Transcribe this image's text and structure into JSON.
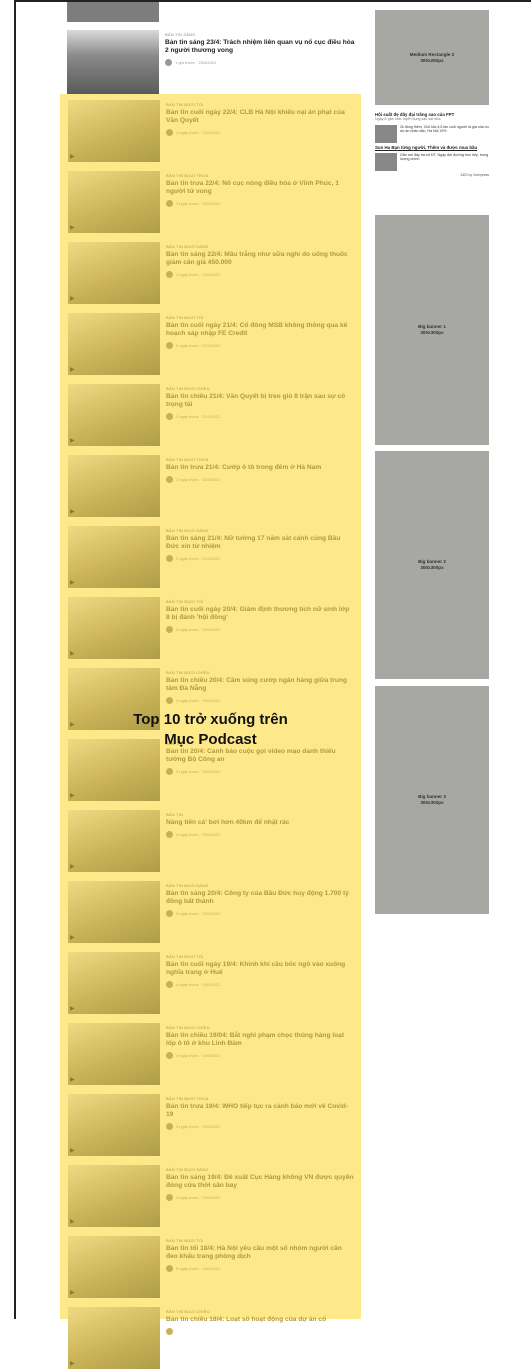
{
  "top_items": [
    {
      "category": "",
      "title": "",
      "date": ""
    },
    {
      "category": "BẢN TIN SÁNG",
      "title": "Bản tin sáng 23/4: Trách nhiệm liên quan vụ nổ cục điều hòa 2 người thương vong",
      "date": "1 giờ trước · 23/4/2021"
    }
  ],
  "list_items": [
    {
      "category": "BẢN TIN BUỔI TỐI",
      "title": "Bản tin cuối ngày 22/4: CLB Hà Nội khiếu nại án phạt của Văn Quyết",
      "date": "1 ngày trước · 22/4/2021"
    },
    {
      "category": "BẢN TIN BUỔI TRƯA",
      "title": "Bản tin trưa 22/4: Nổ cục nóng điều hòa ở Vĩnh Phúc, 1 người tử vong",
      "date": "1 ngày trước · 22/4/2021"
    },
    {
      "category": "BẢN TIN BUỔI SÁNG",
      "title": "Bản tin sáng 22/4: Mâu trắng như sữa nghi do uống thuốc giảm cân giá 450.000",
      "date": "1 ngày trước · 22/4/2021"
    },
    {
      "category": "BẢN TIN BUỔI TỐI",
      "title": "Bản tin cuối ngày 21/4: Cổ đông MSB không thông qua kế hoạch sáp nhập FE Credit",
      "date": "2 ngày trước · 21/4/2021"
    },
    {
      "category": "BẢN TIN BUỔI CHIỀU",
      "title": "Bản tin chiều 21/4: Văn Quyết bị treo giò 8 trận sau sự cố trọng tài",
      "date": "2 ngày trước · 21/4/2021"
    },
    {
      "category": "BẢN TIN BUỔI TRƯA",
      "title": "Bản tin trưa 21/4: Cướp ô tô trong đêm ở Hà Nam",
      "date": "2 ngày trước · 21/4/2021"
    },
    {
      "category": "BẢN TIN BUỔI SÁNG",
      "title": "Bản tin sáng 21/4: Nữ tướng 17 năm sát cánh cùng Bầu Đức xin từ nhiệm",
      "date": "2 ngày trước · 21/4/2021"
    },
    {
      "category": "BẢN TIN BUỔI TỐI",
      "title": "Bản tin cuối ngày 20/4: Giám định thương tích nữ sinh lớp 8 bị đánh 'hội đồng'",
      "date": "3 ngày trước · 20/4/2021"
    },
    {
      "category": "BẢN TIN BUỔI CHIỀU",
      "title": "Bản tin chiều 20/4: Cầm súng cướp ngân hàng giữa trung tâm Đà Nẵng",
      "date": "3 ngày trước · 20/4/2021"
    },
    {
      "category": "BẢN TIN",
      "title": "Bản tin 20/4: Cảnh báo cuộc gọi video mạo danh thiếu tướng Bộ Công an",
      "date": "3 ngày trước · 20/4/2021"
    },
    {
      "category": "BẢN TIN",
      "title": "Nàng tiên cá' bơi hơn 40km để nhặt rác",
      "date": "3 ngày trước · 20/4/2021"
    },
    {
      "category": "BẢN TIN BUỔI SÁNG",
      "title": "Bản tin sáng 20/4: Công ty của Bầu Đức huy động 1.700 tỷ đồng bất thành",
      "date": "3 ngày trước · 20/4/2021"
    },
    {
      "category": "BẢN TIN BUỔI TỐI",
      "title": "Bản tin cuối ngày 19/4: Khinh khí cầu bốc ngô vào xuống nghĩa trang ở Huế",
      "date": "4 ngày trước · 19/4/2021"
    },
    {
      "category": "BẢN TIN BUỔI CHIỀU",
      "title": "Bản tin chiều 19/04: Bắt nghi phạm chọc thủng hàng loạt lốp ô tô ở khu Linh Đàm",
      "date": "4 ngày trước · 19/4/2021"
    },
    {
      "category": "BẢN TIN BUỔI TRƯA",
      "title": "Bản tin trưa 19/4: WHO tiếp tục ra cảnh báo mới về Covid-19",
      "date": "4 ngày trước · 19/4/2021"
    },
    {
      "category": "BẢN TIN BUỔI SÁNG",
      "title": "Bản tin sáng 19/4: Đề xuất Cục Hàng không VN được quyền đóng cửa thời sân bay",
      "date": "4 ngày trước · 19/4/2021"
    },
    {
      "category": "BẢN TIN BUỔI TỐI",
      "title": "Bản tin tối 18/4: Hà Nội yêu cầu một số nhóm người cần đeo khẩu trang phòng dịch",
      "date": "5 ngày trước · 18/4/2021"
    },
    {
      "category": "BẢN TIN BUỔI CHIỀU",
      "title": "Bản tin chiều 18/4: Loạt số hoạt động của dự án cổ",
      "date": ""
    }
  ],
  "overlay": {
    "line1": "Top 10 trở xuống trên",
    "line2": "Mục Podcast"
  },
  "ads": {
    "medium_rect": "Medium Rectangle 2\n300x250px",
    "big1": "Big banner 1\n300x300px",
    "big2": "Big banner 2\n300x300px",
    "big3": "Big banner 3\n300x300px"
  },
  "mini_widget": {
    "headline": "Hội suất đẹ đây đại trăng sao của FPT",
    "sub": "Ngày ở gần nhà: tuyển dụng sao sát nữa",
    "row1": "2k đồng thêm, Chủ tỏa 4,5 lần cuối người/ là giá của hu dự án nhân dân, Hà Nội 19%",
    "link": "Sun Ha Bạn từng người, Thêm và được mua bầu",
    "row2": "Gắn nơi đây tra sử ĐT. Ngày đợi đường trực tiếp, trong lượng chính",
    "foot": "ADS by Vnexpress"
  }
}
